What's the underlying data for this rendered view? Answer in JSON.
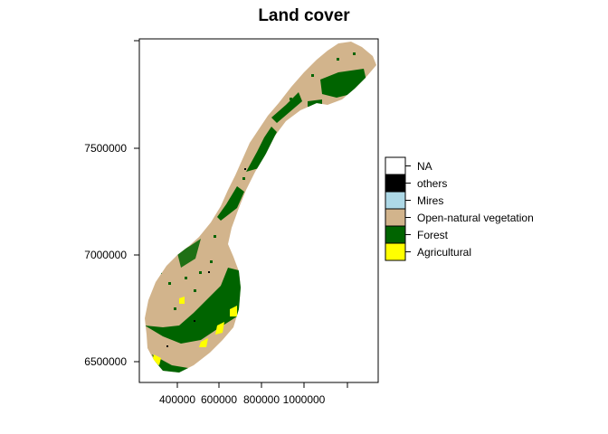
{
  "map": {
    "title": "Land cover",
    "x_ticks": [
      "400000",
      "600000",
      "800000",
      "1000000"
    ],
    "y_ticks": [
      "6500000",
      "7000000",
      "7500000"
    ],
    "legend": [
      {
        "label": "NA",
        "color": "#ffffff"
      },
      {
        "label": "others",
        "color": "#000000"
      },
      {
        "label": "Mires",
        "color": "#add8e6"
      },
      {
        "label": "Open-natural vegetation",
        "color": "#d2b48c"
      },
      {
        "label": "Forest",
        "color": "#006400"
      },
      {
        "label": "Agricultural",
        "color": "#ffff00"
      }
    ]
  }
}
